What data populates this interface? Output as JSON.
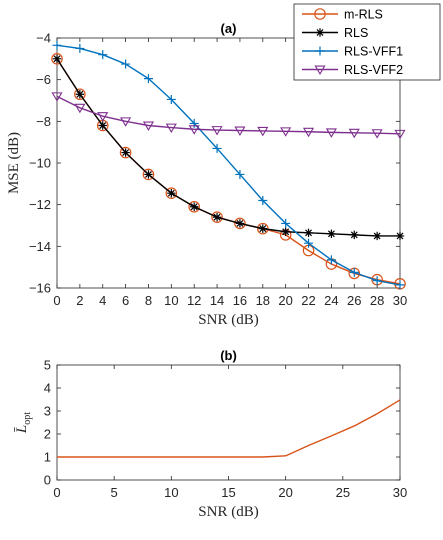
{
  "chart_data": [
    {
      "type": "line",
      "title": "(a)",
      "xlabel": "SNR (dB)",
      "ylabel": "MSE (dB)",
      "xlim": [
        0,
        30
      ],
      "ylim": [
        -16,
        -4
      ],
      "xticks": [
        0,
        2,
        4,
        6,
        8,
        10,
        12,
        14,
        16,
        18,
        20,
        22,
        24,
        26,
        28,
        30
      ],
      "yticks": [
        -16,
        -14,
        -12,
        -10,
        -8,
        -6,
        -4
      ],
      "grid": false,
      "legend_position": "top-right",
      "series": [
        {
          "name": "m-RLS",
          "color": "#D95319",
          "marker": "circle",
          "x": [
            0,
            2,
            4,
            6,
            8,
            10,
            12,
            14,
            16,
            18,
            20,
            22,
            24,
            26,
            28,
            30
          ],
          "values": [
            -5.0,
            -6.7,
            -8.2,
            -9.5,
            -10.55,
            -11.45,
            -12.1,
            -12.6,
            -12.9,
            -13.15,
            -13.45,
            -14.2,
            -14.85,
            -15.3,
            -15.6,
            -15.8
          ]
        },
        {
          "name": "RLS",
          "color": "#000000",
          "marker": "asterisk",
          "x": [
            0,
            2,
            4,
            6,
            8,
            10,
            12,
            14,
            16,
            18,
            20,
            22,
            24,
            26,
            28,
            30
          ],
          "values": [
            -5.0,
            -6.7,
            -8.2,
            -9.5,
            -10.55,
            -11.45,
            -12.1,
            -12.6,
            -12.9,
            -13.15,
            -13.3,
            -13.35,
            -13.4,
            -13.45,
            -13.5,
            -13.5
          ]
        },
        {
          "name": "RLS-VFF1",
          "color": "#0072BD",
          "marker": "plus",
          "x": [
            0,
            2,
            4,
            6,
            8,
            10,
            12,
            14,
            16,
            18,
            20,
            22,
            24,
            26,
            28,
            30
          ],
          "values": [
            -4.35,
            -4.5,
            -4.8,
            -5.25,
            -5.95,
            -6.95,
            -8.1,
            -9.3,
            -10.55,
            -11.8,
            -12.9,
            -13.85,
            -14.65,
            -15.25,
            -15.65,
            -15.85
          ]
        },
        {
          "name": "RLS-VFF2",
          "color": "#7E2F8E",
          "marker": "triangle-down",
          "x": [
            0,
            2,
            4,
            6,
            8,
            10,
            12,
            14,
            16,
            18,
            20,
            22,
            24,
            26,
            28,
            30
          ],
          "values": [
            -6.8,
            -7.35,
            -7.75,
            -8.0,
            -8.2,
            -8.3,
            -8.38,
            -8.42,
            -8.44,
            -8.46,
            -8.48,
            -8.5,
            -8.53,
            -8.55,
            -8.57,
            -8.6
          ]
        }
      ]
    },
    {
      "type": "line",
      "title": "(b)",
      "xlabel": "SNR (dB)",
      "ylabel": "L̄_opt",
      "ylabel_main": "L̄",
      "ylabel_sub": "opt",
      "xlim": [
        0,
        30
      ],
      "ylim": [
        0,
        5
      ],
      "xticks": [
        0,
        5,
        10,
        15,
        20,
        25,
        30
      ],
      "yticks": [
        0,
        1,
        2,
        3,
        4,
        5
      ],
      "grid": false,
      "series": [
        {
          "color": "#D95319",
          "x": [
            0,
            2,
            4,
            6,
            8,
            10,
            12,
            14,
            16,
            18,
            20,
            22,
            24,
            26,
            28,
            30
          ],
          "values": [
            1.0,
            1.0,
            1.0,
            1.0,
            1.0,
            1.0,
            1.0,
            1.0,
            1.0,
            1.0,
            1.05,
            1.5,
            1.92,
            2.35,
            2.88,
            3.48
          ]
        }
      ]
    }
  ]
}
